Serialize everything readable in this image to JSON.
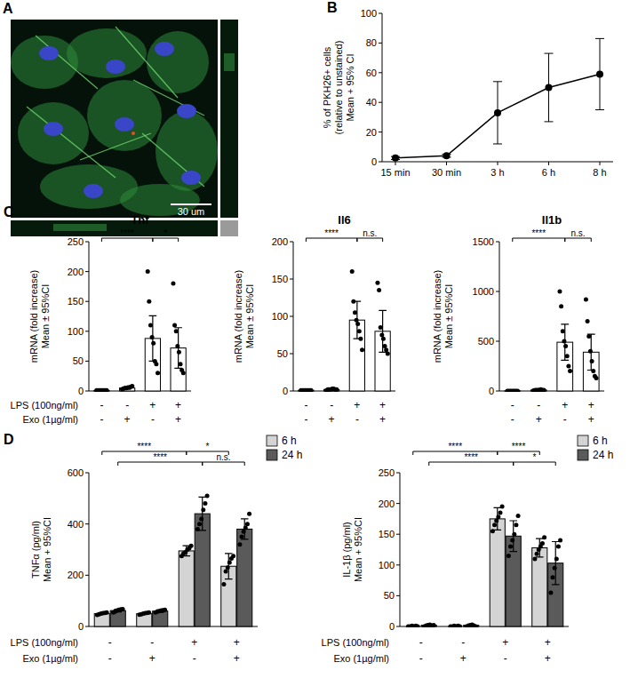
{
  "image": {
    "panel": "A",
    "scale_bar": "30 um"
  },
  "chart_data": [
    {
      "type": "line",
      "panel": "B",
      "y_label": [
        "% of PKH26+ cells",
        "(relative to unstained)",
        "Mean + 95% CI"
      ],
      "categories": [
        "15 min",
        "30 min",
        "3 h",
        "6 h",
        "8 h"
      ],
      "values": [
        2.5,
        4,
        33,
        50,
        59
      ],
      "errors": [
        1,
        1,
        21,
        23,
        24
      ],
      "ylim": [
        0,
        100
      ],
      "yticks": [
        0,
        20,
        40,
        60,
        80,
        100
      ],
      "color": "#000000",
      "marker": "circle"
    },
    {
      "type": "bar",
      "panel": "C",
      "title": "Tnf",
      "y_label": [
        "mRNA (fold increase)",
        "Mean ± 95%CI"
      ],
      "categories": [
        null,
        null,
        null,
        null
      ],
      "values": [
        1,
        5,
        88,
        72
      ],
      "errors": [
        0.5,
        2,
        38,
        34
      ],
      "points": [
        [
          1,
          1,
          1,
          1,
          1,
          1,
          1,
          1
        ],
        [
          3,
          4,
          5,
          5,
          6,
          6,
          7,
          8
        ],
        [
          200,
          150,
          110,
          90,
          80,
          50,
          45,
          30
        ],
        [
          180,
          110,
          100,
          75,
          65,
          45,
          35,
          30
        ]
      ],
      "ylim": [
        0,
        250
      ],
      "yticks": [
        0,
        50,
        100,
        150,
        200,
        250
      ],
      "color": "#ffffff",
      "condition_labels": [
        "LPS (100ng/ml)",
        "Exo (1µg/ml)"
      ],
      "conditions": [
        [
          "-",
          "-",
          "+",
          "+"
        ],
        [
          "-",
          "+",
          "-",
          "+"
        ]
      ],
      "significance": [
        {
          "from": 0,
          "to": 2,
          "label": "****"
        },
        {
          "from": 2,
          "to": 3,
          "label": "*"
        }
      ]
    },
    {
      "type": "bar",
      "title": "Il6",
      "y_label": [
        "mRNA (fold increase)",
        "Mean ± 95%CI"
      ],
      "categories": [
        null,
        null,
        null,
        null
      ],
      "values": [
        1,
        2,
        95,
        80
      ],
      "errors": [
        0.5,
        1,
        25,
        28
      ],
      "points": [
        [
          1,
          1,
          1,
          1,
          1,
          1,
          1,
          1
        ],
        [
          1,
          2,
          2,
          2,
          3,
          3,
          2,
          2
        ],
        [
          160,
          120,
          105,
          95,
          90,
          80,
          70,
          55
        ],
        [
          145,
          135,
          85,
          75,
          70,
          60,
          55,
          50
        ]
      ],
      "ylim": [
        0,
        200
      ],
      "yticks": [
        0,
        50,
        100,
        150,
        200
      ],
      "color": "#ffffff",
      "conditions": [
        [
          "-",
          "-",
          "+",
          "+"
        ],
        [
          "-",
          "+",
          "-",
          "+"
        ]
      ],
      "significance": [
        {
          "from": 0,
          "to": 2,
          "label": "****"
        },
        {
          "from": 2,
          "to": 3,
          "label": "n.s."
        }
      ]
    },
    {
      "type": "bar",
      "title": "Il1b",
      "y_label": [
        "mRNA (fold increase)",
        "Mean ± 95%CI"
      ],
      "categories": [
        null,
        null,
        null,
        null
      ],
      "values": [
        1,
        10,
        490,
        390
      ],
      "errors": [
        0.5,
        4,
        180,
        180
      ],
      "points": [
        [
          1,
          1,
          1,
          1,
          1,
          1,
          1,
          1
        ],
        [
          5,
          8,
          10,
          10,
          12,
          15,
          10,
          8
        ],
        [
          1000,
          850,
          600,
          500,
          450,
          350,
          250,
          200
        ],
        [
          920,
          700,
          550,
          400,
          300,
          200,
          150,
          130
        ]
      ],
      "ylim": [
        0,
        1500
      ],
      "yticks": [
        0,
        500,
        1000,
        1500
      ],
      "color": "#ffffff",
      "conditions": [
        [
          "-",
          "-",
          "+",
          "+"
        ],
        [
          "-",
          "+",
          "-",
          "+"
        ]
      ],
      "significance": [
        {
          "from": 0,
          "to": 2,
          "label": "****"
        },
        {
          "from": 2,
          "to": 3,
          "label": "n.s."
        }
      ]
    },
    {
      "type": "bar",
      "panel": "D",
      "y_label": [
        "TNFα (pg/ml)",
        "Mean + 95%CI"
      ],
      "categories": [
        null,
        null,
        null,
        null
      ],
      "series": [
        {
          "name": "6 h",
          "color": "#d4d4d4",
          "values": [
            50,
            50,
            295,
            235
          ],
          "errors": [
            3,
            3,
            20,
            50
          ],
          "points": [
            [
              45,
              48,
              50,
              52,
              53,
              55
            ],
            [
              46,
              48,
              50,
              52,
              53,
              55
            ],
            [
              275,
              285,
              290,
              300,
              305,
              315
            ],
            [
              165,
              215,
              230,
              250,
              265,
              275
            ]
          ]
        },
        {
          "name": "24 h",
          "color": "#5a5a5a",
          "values": [
            62,
            60,
            440,
            380
          ],
          "errors": [
            5,
            5,
            65,
            40
          ],
          "points": [
            [
              55,
              58,
              62,
              65,
              67,
              68
            ],
            [
              55,
              58,
              60,
              62,
              63,
              65
            ],
            [
              380,
              400,
              420,
              455,
              480,
              510
            ],
            [
              320,
              350,
              370,
              385,
              400,
              440
            ]
          ]
        }
      ],
      "ylim": [
        0,
        600
      ],
      "yticks": [
        0,
        200,
        400,
        600
      ],
      "legend": "upper right",
      "condition_labels": [
        "LPS (100ng/ml)",
        "Exo (1µg/ml)"
      ],
      "conditions": [
        [
          "-",
          "-",
          "+",
          "+"
        ],
        [
          "-",
          "+",
          "-",
          "+"
        ]
      ],
      "significance": [
        {
          "series": 0,
          "from": 0,
          "to": 2,
          "label": "****"
        },
        {
          "series": 0,
          "from": 2,
          "to": 3,
          "label": "*"
        },
        {
          "series": 1,
          "from": 0,
          "to": 2,
          "label": "****"
        },
        {
          "series": 1,
          "from": 2,
          "to": 3,
          "label": "n.s."
        }
      ]
    },
    {
      "type": "bar",
      "y_label": [
        "IL-1β (pg/ml)",
        "Mean + 95%CI"
      ],
      "categories": [
        null,
        null,
        null,
        null
      ],
      "series": [
        {
          "name": "6 h",
          "color": "#d4d4d4",
          "values": [
            0,
            0,
            175,
            128
          ],
          "errors": [
            1,
            1,
            18,
            15
          ],
          "points": [
            [
              0,
              0,
              1,
              0,
              1,
              0
            ],
            [
              0,
              0,
              1,
              0,
              1,
              0
            ],
            [
              155,
              165,
              172,
              178,
              185,
              195
            ],
            [
              110,
              118,
              125,
              130,
              135,
              145
            ]
          ]
        },
        {
          "name": "24 h",
          "color": "#5a5a5a",
          "values": [
            2,
            2,
            147,
            103
          ],
          "errors": [
            2,
            2,
            25,
            35
          ],
          "points": [
            [
              0,
              1,
              2,
              3,
              1,
              2
            ],
            [
              0,
              1,
              2,
              3,
              1,
              0
            ],
            [
              115,
              130,
              140,
              150,
              165,
              180
            ],
            [
              55,
              80,
              95,
              110,
              130,
              140
            ]
          ]
        }
      ],
      "ylim": [
        0,
        250
      ],
      "yticks": [
        0,
        50,
        100,
        150,
        200,
        250
      ],
      "legend": "upper right",
      "condition_labels": [
        "LPS (100ng/ml)",
        "Exo (1µg/ml)"
      ],
      "conditions": [
        [
          "-",
          "-",
          "+",
          "+"
        ],
        [
          "-",
          "+",
          "-",
          "+"
        ]
      ],
      "significance": [
        {
          "series": 0,
          "from": 0,
          "to": 2,
          "label": "****"
        },
        {
          "series": 0,
          "from": 2,
          "to": 3,
          "label": "****"
        },
        {
          "series": 1,
          "from": 0,
          "to": 2,
          "label": "****"
        },
        {
          "series": 1,
          "from": 2,
          "to": 3,
          "label": "*"
        }
      ]
    }
  ]
}
